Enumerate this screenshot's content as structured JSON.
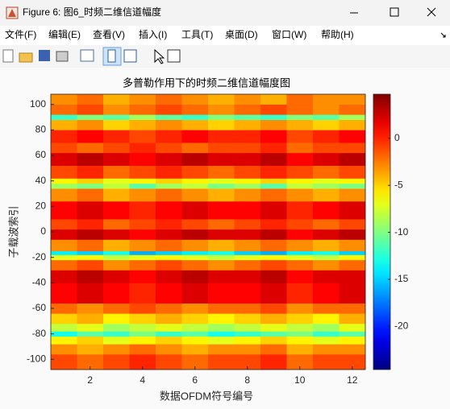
{
  "window": {
    "title": "Figure 6: 图6_时频二维信道幅度",
    "menu": [
      "文件(F)",
      "编辑(E)",
      "查看(V)",
      "插入(I)",
      "工具(T)",
      "桌面(D)",
      "窗口(W)",
      "帮助(H)"
    ]
  },
  "chart_data": {
    "type": "heatmap",
    "title": "多普勒作用下的时频二维信道幅度图",
    "xlabel": "数据OFDM符号编号",
    "ylabel": "子载波索引",
    "x": [
      1,
      2,
      3,
      4,
      5,
      6,
      7,
      8,
      9,
      10,
      11,
      12
    ],
    "y_edges": [
      -108,
      -96,
      -88,
      -82,
      -78,
      -72,
      -64,
      -56,
      -40,
      -30,
      -22,
      -18,
      -15,
      -6,
      2,
      10,
      24,
      34,
      38,
      42,
      52,
      62,
      70,
      80,
      88,
      92,
      100,
      108
    ],
    "z": [
      [
        -1,
        -2,
        -1,
        0,
        -1,
        -2,
        -1,
        -1,
        0,
        -2,
        -1,
        -1
      ],
      [
        -3,
        -4,
        -3,
        -2,
        -3,
        -4,
        -3,
        -3,
        -2,
        -4,
        -3,
        -3
      ],
      [
        -6,
        -5,
        -7,
        -6,
        -5,
        -6,
        -7,
        -6,
        -5,
        -6,
        -7,
        -6
      ],
      [
        -13,
        -11,
        -12,
        -10,
        -12,
        -11,
        -13,
        -12,
        -11,
        -10,
        -12,
        -11
      ],
      [
        -8,
        -7,
        -9,
        -8,
        -7,
        -8,
        -9,
        -8,
        -7,
        -8,
        -9,
        -7
      ],
      [
        -5,
        -4,
        -6,
        -5,
        -4,
        -5,
        -6,
        -5,
        -4,
        -5,
        -6,
        -4
      ],
      [
        -2,
        -3,
        -2,
        -1,
        -2,
        -3,
        -2,
        -2,
        -1,
        -3,
        -2,
        -2
      ],
      [
        1,
        2,
        1,
        0,
        1,
        2,
        1,
        1,
        2,
        0,
        1,
        2
      ],
      [
        2,
        3,
        2,
        1,
        2,
        3,
        2,
        2,
        3,
        1,
        2,
        2
      ],
      [
        -2,
        -1,
        -3,
        -2,
        -1,
        -2,
        -3,
        -2,
        -1,
        -2,
        -3,
        -2
      ],
      [
        -7,
        -6,
        -8,
        -7,
        -6,
        -7,
        -8,
        -7,
        -6,
        -7,
        -8,
        -6
      ],
      [
        -14,
        -15,
        -13,
        -16,
        -15,
        -14,
        -13,
        -15,
        -16,
        -14,
        -13,
        -15
      ],
      [
        -3,
        -2,
        -4,
        -3,
        -2,
        -3,
        -4,
        -3,
        -2,
        -3,
        -4,
        -3
      ],
      [
        2,
        3,
        2,
        1,
        2,
        3,
        2,
        2,
        3,
        1,
        2,
        3
      ],
      [
        -1,
        0,
        -2,
        -1,
        0,
        -1,
        -2,
        -1,
        0,
        -1,
        -2,
        -1
      ],
      [
        1,
        2,
        1,
        0,
        1,
        2,
        1,
        1,
        2,
        0,
        1,
        2
      ],
      [
        -3,
        -2,
        -4,
        -3,
        -2,
        -3,
        -4,
        -3,
        -2,
        -3,
        -4,
        -3
      ],
      [
        -9,
        -10,
        -8,
        -11,
        -9,
        -8,
        -10,
        -9,
        -11,
        -8,
        -9,
        -10
      ],
      [
        -6,
        -5,
        -7,
        -6,
        -5,
        -6,
        -7,
        -6,
        -5,
        -6,
        -7,
        -6
      ],
      [
        -1,
        0,
        -2,
        -1,
        0,
        -1,
        -2,
        -1,
        0,
        -1,
        -2,
        -1
      ],
      [
        2,
        3,
        2,
        1,
        2,
        3,
        2,
        2,
        3,
        1,
        2,
        3
      ],
      [
        -1,
        -2,
        -1,
        0,
        -1,
        -2,
        -1,
        -1,
        0,
        -2,
        -1,
        -1
      ],
      [
        0,
        1,
        0,
        -1,
        0,
        1,
        0,
        0,
        1,
        -1,
        0,
        1
      ],
      [
        -4,
        -3,
        -5,
        -4,
        -3,
        -4,
        -5,
        -4,
        -3,
        -4,
        -5,
        -4
      ],
      [
        -12,
        -10,
        -11,
        -9,
        -11,
        -12,
        -10,
        -11,
        -12,
        -10,
        -11,
        -9
      ],
      [
        -2,
        -1,
        -3,
        -2,
        -1,
        -2,
        -3,
        -2,
        -1,
        -2,
        -3,
        -2
      ],
      [
        -3,
        -2,
        -4,
        -3,
        -2,
        -3,
        -4,
        -3,
        -4,
        -2,
        -3,
        -3
      ]
    ],
    "xlim": [
      0.5,
      12.5
    ],
    "ylim": [
      -108,
      108
    ],
    "xticks": [
      2,
      4,
      6,
      8,
      10,
      12
    ],
    "yticks": [
      -100,
      -80,
      -60,
      -40,
      -20,
      0,
      20,
      40,
      60,
      80,
      100
    ],
    "colormap": "jet",
    "colorbar": {
      "lim": [
        -24.6,
        4.7
      ],
      "ticks": [
        0,
        -5,
        -10,
        -15,
        -20
      ]
    }
  }
}
